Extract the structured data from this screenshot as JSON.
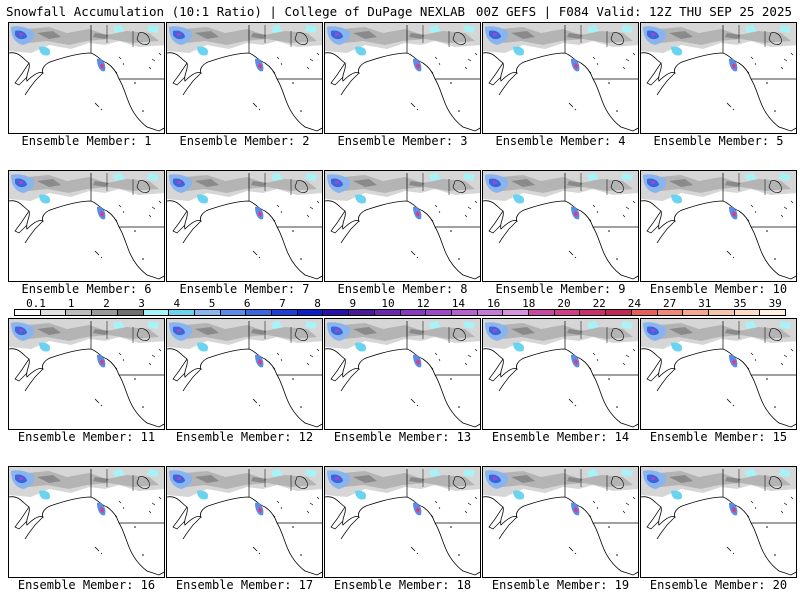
{
  "header": {
    "left": "Snowfall Accumulation (10:1 Ratio) | College of DuPage NEXLAB",
    "right": "00Z GEFS | F084 Valid: 12Z THU SEP 25 2025"
  },
  "members": [
    "Ensemble Member: 1",
    "Ensemble Member: 2",
    "Ensemble Member: 3",
    "Ensemble Member: 4",
    "Ensemble Member: 5",
    "Ensemble Member: 6",
    "Ensemble Member: 7",
    "Ensemble Member: 8",
    "Ensemble Member: 9",
    "Ensemble Member: 10",
    "Ensemble Member: 11",
    "Ensemble Member: 12",
    "Ensemble Member: 13",
    "Ensemble Member: 14",
    "Ensemble Member: 15",
    "Ensemble Member: 16",
    "Ensemble Member: 17",
    "Ensemble Member: 18",
    "Ensemble Member: 19",
    "Ensemble Member: 20"
  ],
  "colorbar": {
    "labels": [
      "0.1",
      "1",
      "2",
      "3",
      "4",
      "5",
      "6",
      "7",
      "8",
      "9",
      "10",
      "12",
      "14",
      "16",
      "18",
      "20",
      "22",
      "24",
      "27",
      "31",
      "35",
      "39"
    ],
    "colors": [
      "#ffffff",
      "#e0e0e0",
      "#bdbdbd",
      "#9a9a9a",
      "#707070",
      "#a6f4f8",
      "#6ad4f0",
      "#8ab4ee",
      "#5b8de8",
      "#3a66e0",
      "#1e3fd8",
      "#0a1fc8",
      "#2a10a8",
      "#4b1a9a",
      "#6a28b0",
      "#8a38c0",
      "#a048c8",
      "#b860d0",
      "#c878d8",
      "#d890e0",
      "#c84aa0",
      "#d0408a",
      "#c8306e",
      "#c02858",
      "#e4605a",
      "#f08a78",
      "#f4a890",
      "#f8c4ac",
      "#fcdcc8",
      "#fff0e0"
    ]
  }
}
